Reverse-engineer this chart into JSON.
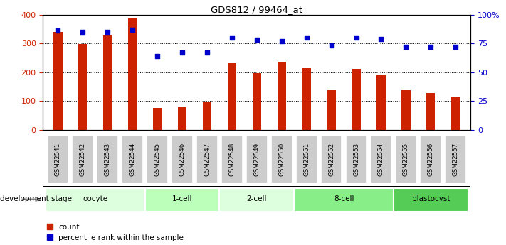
{
  "title": "GDS812 / 99464_at",
  "samples": [
    "GSM22541",
    "GSM22542",
    "GSM22543",
    "GSM22544",
    "GSM22545",
    "GSM22546",
    "GSM22547",
    "GSM22548",
    "GSM22549",
    "GSM22550",
    "GSM22551",
    "GSM22552",
    "GSM22553",
    "GSM22554",
    "GSM22555",
    "GSM22556",
    "GSM22557"
  ],
  "counts": [
    340,
    298,
    330,
    388,
    75,
    82,
    95,
    232,
    196,
    237,
    215,
    138,
    213,
    190,
    138,
    128,
    116
  ],
  "percentiles": [
    86,
    85,
    85,
    87,
    64,
    67,
    67,
    80,
    78,
    77,
    80,
    73,
    80,
    79,
    72,
    72,
    72
  ],
  "bar_color": "#cc2200",
  "dot_color": "#0000cc",
  "ylim_left": [
    0,
    400
  ],
  "ylim_right": [
    0,
    100
  ],
  "yticks_left": [
    0,
    100,
    200,
    300,
    400
  ],
  "yticks_right": [
    0,
    25,
    50,
    75,
    100
  ],
  "ytick_labels_right": [
    "0",
    "25",
    "50",
    "75",
    "100%"
  ],
  "grid_values": [
    100,
    200,
    300
  ],
  "stages": [
    {
      "label": "oocyte",
      "start": 0,
      "end": 4,
      "color": "#ddffdd"
    },
    {
      "label": "1-cell",
      "start": 4,
      "end": 7,
      "color": "#bbffbb"
    },
    {
      "label": "2-cell",
      "start": 7,
      "end": 10,
      "color": "#ddffdd"
    },
    {
      "label": "8-cell",
      "start": 10,
      "end": 14,
      "color": "#88ee88"
    },
    {
      "label": "blastocyst",
      "start": 14,
      "end": 17,
      "color": "#55cc55"
    }
  ],
  "dev_stage_label": "development stage",
  "legend_count_label": "count",
  "legend_pct_label": "percentile rank within the sample",
  "background_color": "#ffffff",
  "tick_bg_color": "#cccccc",
  "figsize": [
    7.11,
    3.45
  ],
  "dpi": 100
}
